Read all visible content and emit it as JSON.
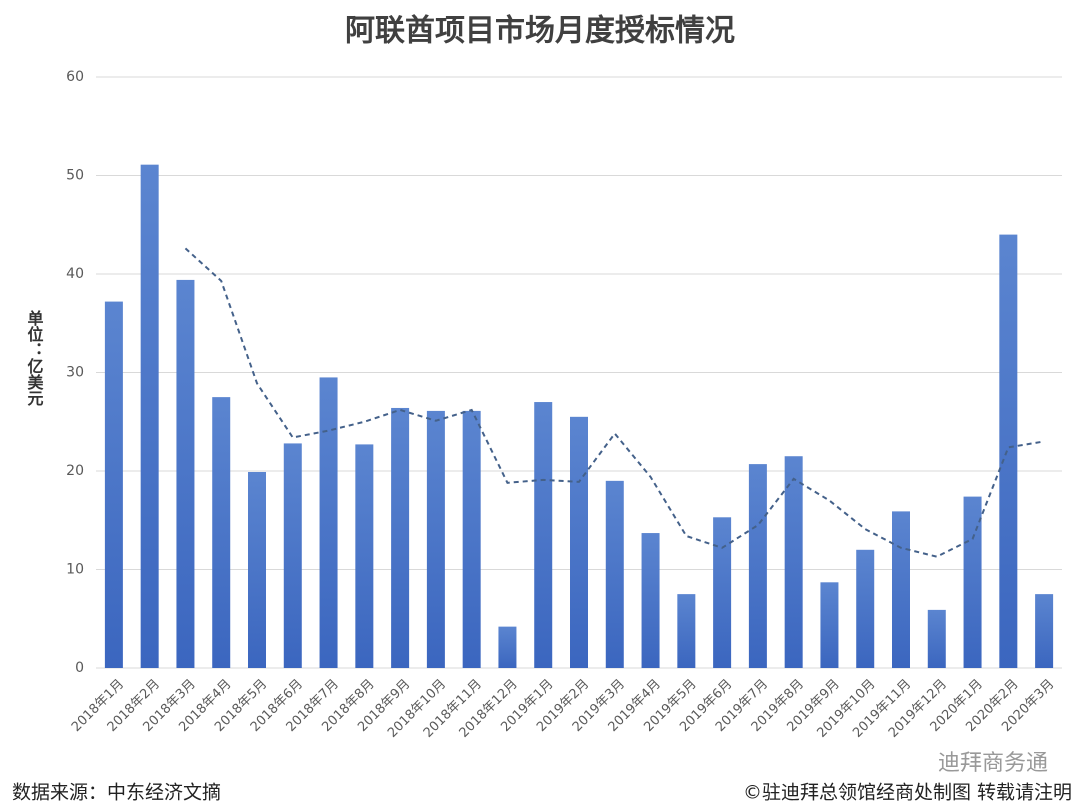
{
  "chart_data": {
    "type": "bar",
    "title": "阿联酋项目市场月度授标情况",
    "y_label": "单位：亿美元",
    "source": "数据来源：中东经济文摘",
    "credit": "©驻迪拜总领馆经商处制图 转载请注明",
    "watermark": "迪拜商务通",
    "categories": [
      "2018年1月",
      "2018年2月",
      "2018年3月",
      "2018年4月",
      "2018年5月",
      "2018年6月",
      "2018年7月",
      "2018年8月",
      "2018年9月",
      "2018年10月",
      "2018年11月",
      "2018年12月",
      "2019年1月",
      "2019年2月",
      "2019年3月",
      "2019年4月",
      "2019年5月",
      "2019年6月",
      "2019年7月",
      "2019年8月",
      "2019年9月",
      "2019年10月",
      "2019年11月",
      "2019年12月",
      "2020年1月",
      "2020年2月",
      "2020年3月"
    ],
    "series": [
      {
        "type": "bar",
        "color": "#4472c4",
        "values": [
          37.2,
          51.1,
          39.4,
          27.5,
          19.9,
          22.8,
          29.5,
          22.7,
          26.4,
          26.1,
          26.1,
          4.2,
          27.0,
          25.5,
          19.0,
          13.7,
          7.5,
          15.3,
          20.7,
          21.5,
          8.7,
          12.0,
          15.9,
          5.9,
          17.4,
          44.0,
          7.5
        ]
      },
      {
        "type": "line",
        "color": "#44618a",
        "dashed": true,
        "values": [
          null,
          null,
          42.6,
          39.3,
          28.9,
          23.4,
          24.1,
          25.0,
          26.2,
          25.1,
          26.2,
          18.8,
          19.1,
          18.9,
          23.8,
          19.4,
          13.4,
          12.2,
          14.5,
          19.2,
          17.0,
          14.1,
          12.2,
          11.3,
          13.1,
          22.4,
          23.0
        ]
      }
    ],
    "ylim": [
      0,
      60
    ],
    "yticks": [
      0,
      10,
      20,
      30,
      40,
      50,
      60
    ],
    "grid": true
  }
}
